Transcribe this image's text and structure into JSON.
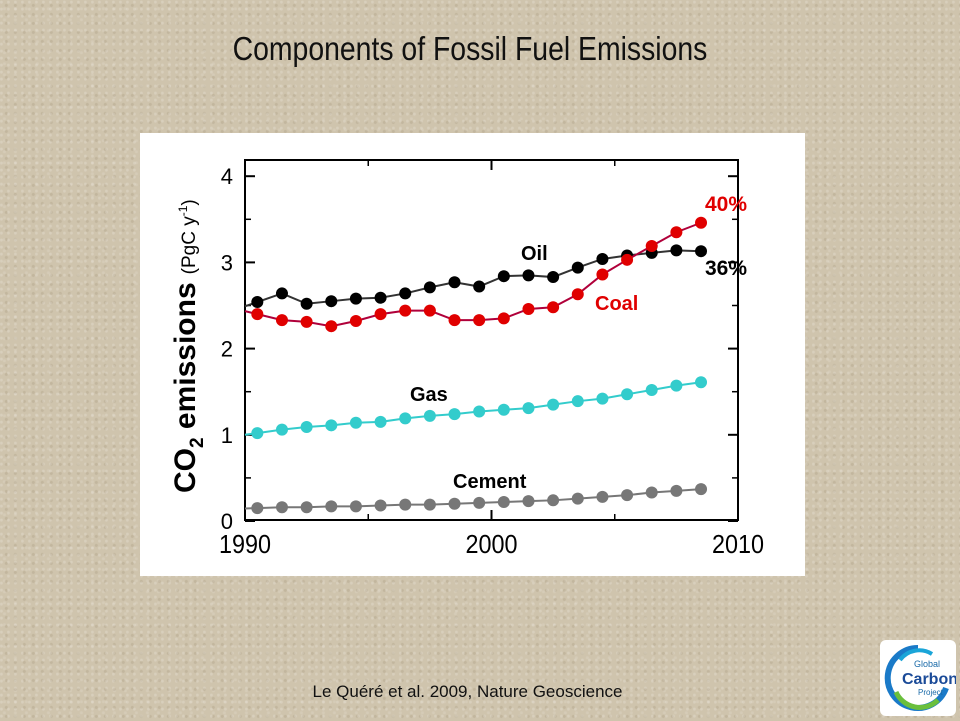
{
  "slide": {
    "title": "Components of Fossil Fuel Emissions",
    "citation": "Le Quéré et al. 2009, Nature Geoscience",
    "logo": {
      "line1": "Global",
      "line2": "Carbon",
      "line3": "Project"
    }
  },
  "chart_data": {
    "type": "line",
    "ylabel_main": "CO",
    "ylabel_sub": "2",
    "ylabel_rest": " emissions",
    "ylabel_unit": "(PgC y",
    "ylabel_unit_exp": "-1",
    "ylabel_unit_close": ")",
    "xlim": [
      1990,
      2010
    ],
    "ylim": [
      0,
      4
    ],
    "xticks": [
      "1990",
      "2000",
      "2010"
    ],
    "yticks": [
      "0",
      "1",
      "2",
      "3",
      "4"
    ],
    "grid": false,
    "series": [
      {
        "name": "Oil",
        "color": "#000000",
        "annotation": "36%",
        "annotation_color": "#000000",
        "x": [
          1990.5,
          1991.5,
          1992.5,
          1993.5,
          1994.5,
          1995.5,
          1996.5,
          1997.5,
          1998.5,
          1999.5,
          2000.5,
          2001.5,
          2002.5,
          2003.5,
          2004.5,
          2005.5,
          2006.5,
          2007.5,
          2008.5
        ],
        "y": [
          2.54,
          2.64,
          2.52,
          2.55,
          2.58,
          2.59,
          2.64,
          2.71,
          2.77,
          2.72,
          2.84,
          2.85,
          2.83,
          2.94,
          3.04,
          3.08,
          3.11,
          3.14,
          3.13
        ]
      },
      {
        "name": "Coal",
        "color": "#e00000",
        "annotation": "40%",
        "annotation_color": "#e00000",
        "x": [
          1990.5,
          1991.5,
          1992.5,
          1993.5,
          1994.5,
          1995.5,
          1996.5,
          1997.5,
          1998.5,
          1999.5,
          2000.5,
          2001.5,
          2002.5,
          2003.5,
          2004.5,
          2005.5,
          2006.5,
          2007.5,
          2008.5
        ],
        "y": [
          2.4,
          2.33,
          2.31,
          2.26,
          2.32,
          2.4,
          2.44,
          2.44,
          2.33,
          2.33,
          2.35,
          2.46,
          2.48,
          2.63,
          2.86,
          3.03,
          3.19,
          3.35,
          3.46
        ]
      },
      {
        "name": "Gas",
        "color": "#33cccc",
        "x": [
          1990.5,
          1991.5,
          1992.5,
          1993.5,
          1994.5,
          1995.5,
          1996.5,
          1997.5,
          1998.5,
          1999.5,
          2000.5,
          2001.5,
          2002.5,
          2003.5,
          2004.5,
          2005.5,
          2006.5,
          2007.5,
          2008.5
        ],
        "y": [
          1.02,
          1.06,
          1.09,
          1.11,
          1.14,
          1.15,
          1.19,
          1.22,
          1.24,
          1.27,
          1.29,
          1.31,
          1.35,
          1.39,
          1.42,
          1.47,
          1.52,
          1.57,
          1.61
        ]
      },
      {
        "name": "Cement",
        "color": "#777777",
        "x": [
          1990.5,
          1991.5,
          1992.5,
          1993.5,
          1994.5,
          1995.5,
          1996.5,
          1997.5,
          1998.5,
          1999.5,
          2000.5,
          2001.5,
          2002.5,
          2003.5,
          2004.5,
          2005.5,
          2006.5,
          2007.5,
          2008.5
        ],
        "y": [
          0.15,
          0.16,
          0.16,
          0.17,
          0.17,
          0.18,
          0.19,
          0.19,
          0.2,
          0.21,
          0.22,
          0.23,
          0.24,
          0.26,
          0.28,
          0.3,
          0.33,
          0.35,
          0.37
        ]
      }
    ]
  }
}
